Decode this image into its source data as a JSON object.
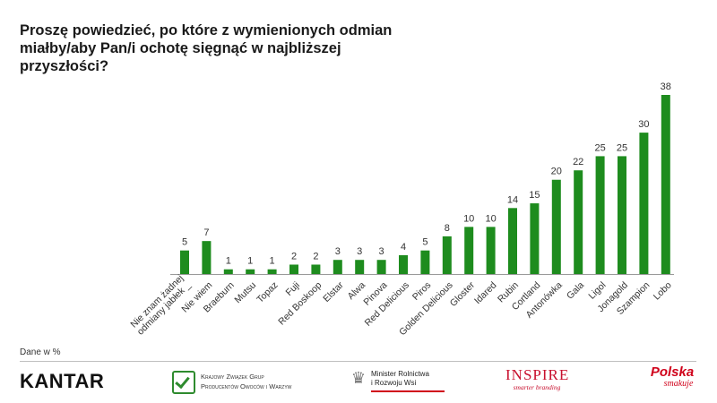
{
  "title": "Proszę powiedzieć, po które z wymienionych odmian miałby/aby Pan/i ochotę sięgnąć w najbliższej przyszłości?",
  "note": "Dane w %",
  "colors": {
    "bar": "#1e8c1e",
    "axis": "#9a9a9a"
  },
  "footer": {
    "kantar": "KANTAR",
    "kzgp_line1": "Krajowy Związek Grup",
    "kzgp_line2": "Producentów Owoców i Warzyw",
    "kzgp_icon": "apple-check-icon",
    "minister_line1": "Minister Rolnictwa",
    "minister_line2": "i Rozwoju Wsi",
    "minister_icon": "eagle-emblem-icon",
    "inspire_main": "INSPIRE",
    "inspire_sub": "smarter branding",
    "polska_main": "Polska",
    "polska_sub": "smakuje"
  },
  "chart_data": {
    "type": "bar",
    "title": "Proszę powiedzieć, po które z wymienionych odmian miałby/aby Pan/i ochotę sięgnąć w najbliższej przyszłości?",
    "categories": [
      [
        "Nie znam żadnej",
        "odmiany jabłek _"
      ],
      [
        "Nie wiem"
      ],
      [
        "Braeburn"
      ],
      [
        "Mutsu"
      ],
      [
        "Topaz"
      ],
      [
        "Fuji"
      ],
      [
        "Red Boskoop"
      ],
      [
        "Elstar"
      ],
      [
        "Alwa"
      ],
      [
        "Pinova"
      ],
      [
        "Red Delicious"
      ],
      [
        "Piros"
      ],
      [
        "Golden Delicious"
      ],
      [
        "Gloster"
      ],
      [
        "Idared"
      ],
      [
        "Rubin"
      ],
      [
        "Cortland"
      ],
      [
        "Antonówka"
      ],
      [
        "Gala"
      ],
      [
        "Ligol"
      ],
      [
        "Jonagold"
      ],
      [
        "Szampion"
      ],
      [
        "Lobo"
      ]
    ],
    "values": [
      5,
      7,
      1,
      1,
      1,
      2,
      2,
      3,
      3,
      3,
      4,
      5,
      8,
      10,
      10,
      14,
      15,
      20,
      22,
      25,
      25,
      30,
      38
    ],
    "ylim": [
      0,
      38
    ],
    "grid": false,
    "legend": "none",
    "unit_note": "Dane w %"
  }
}
